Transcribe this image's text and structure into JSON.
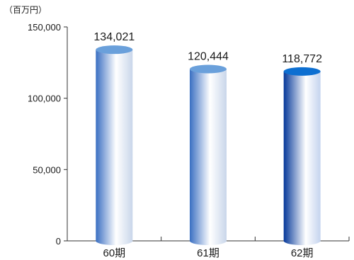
{
  "chart_data": {
    "type": "bar",
    "unit": "（百万円）",
    "categories": [
      "60期",
      "61期",
      "62期"
    ],
    "values": [
      134021,
      120444,
      118772
    ],
    "value_labels": [
      "134,021",
      "120,444",
      "118,772"
    ],
    "yticks": [
      0,
      50000,
      100000,
      150000
    ],
    "ytick_labels": [
      "0",
      "50,000",
      "100,000",
      "150,000"
    ],
    "ylim": [
      0,
      150000
    ],
    "grid": false,
    "legend": "none",
    "colors": {
      "bar_light_edge": "#3f74c4",
      "bar_highlight": "#ffffff",
      "bar_cap": "#6aa0db",
      "bar_dark_edge": "#0a3e9e",
      "bar_dark_cap": "#0d6fd1",
      "axis": "#333333"
    }
  }
}
